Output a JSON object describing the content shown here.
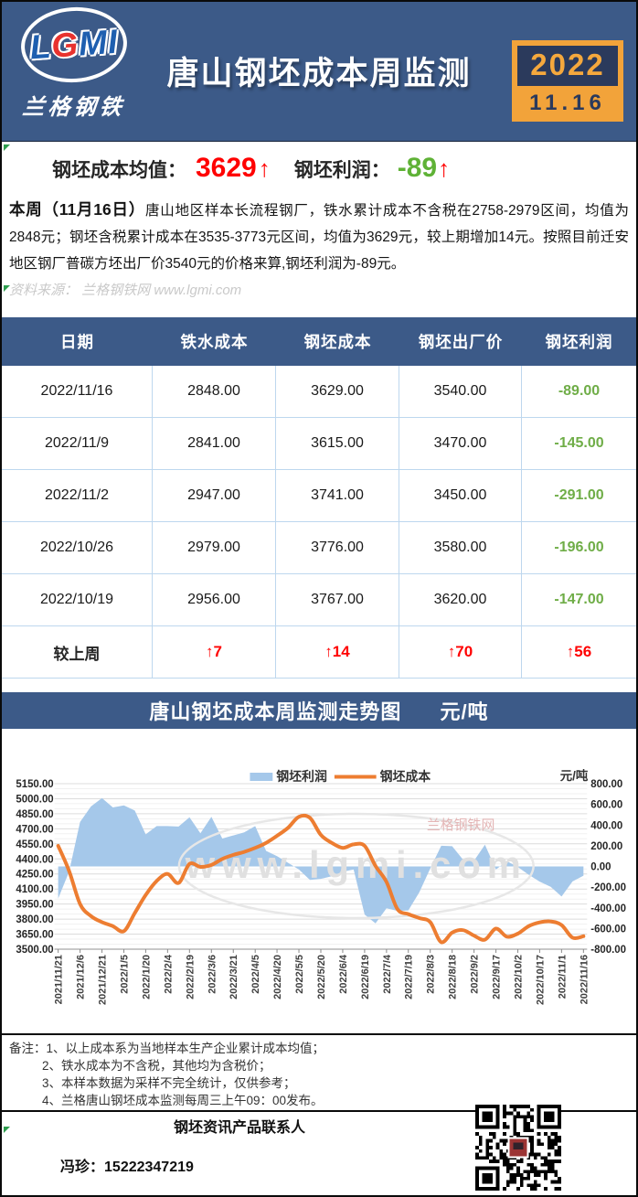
{
  "header": {
    "logo_text": "LGMI",
    "logo_sub": "兰格钢铁",
    "title": "唐山钢坯成本周监测",
    "date_year": "2022",
    "date_md": "11.16"
  },
  "summary": {
    "cost_label": "钢坯成本均值：",
    "cost_value": "3629",
    "cost_arrow": "↑",
    "profit_label": "钢坯利润：",
    "profit_value": "-89",
    "profit_arrow": "↑",
    "paragraph_lead": "本周（11月16日）",
    "paragraph": "唐山地区样本长流程钢厂，铁水累计成本不含税在2758-2979区间，均值为2848元；钢坯含税累计成本在3535-3773元区间，均值为3629元，较上期增加14元。按照目前迁安地区钢厂普碳方坯出厂价3540元的价格来算,钢坯利润为-89元。",
    "source": "资料来源： 兰格钢铁网 www.lgmi.com"
  },
  "table": {
    "headers": [
      "日期",
      "铁水成本",
      "钢坯成本",
      "钢坯出厂价",
      "钢坯利润"
    ],
    "rows": [
      [
        "2022/11/16",
        "2848.00",
        "3629.00",
        "3540.00",
        "-89.00"
      ],
      [
        "2022/11/9",
        "2841.00",
        "3615.00",
        "3470.00",
        "-145.00"
      ],
      [
        "2022/11/2",
        "2947.00",
        "3741.00",
        "3450.00",
        "-291.00"
      ],
      [
        "2022/10/26",
        "2979.00",
        "3776.00",
        "3580.00",
        "-196.00"
      ],
      [
        "2022/10/19",
        "2956.00",
        "3767.00",
        "3620.00",
        "-147.00"
      ]
    ],
    "change_row": [
      "较上周",
      "↑7",
      "↑14",
      "↑70",
      "↑56"
    ]
  },
  "chart_title": {
    "text": "唐山钢坯成本周监测走势图",
    "unit": "元/吨"
  },
  "chart_data": {
    "type": "combo",
    "x_labels": [
      "2021/11/21",
      "2021/12/6",
      "2021/12/21",
      "2022/1/5",
      "2022/1/20",
      "2022/2/4",
      "2022/2/19",
      "2022/3/6",
      "2022/3/21",
      "2022/4/5",
      "2022/4/20",
      "2022/5/5",
      "2022/5/20",
      "2022/6/4",
      "2022/6/19",
      "2022/7/4",
      "2022/7/19",
      "2022/8/3",
      "2022/8/18",
      "2022/9/2",
      "2022/9/17",
      "2022/10/2",
      "2022/10/17",
      "2022/11/1",
      "2022/11/16"
    ],
    "label_every": 2,
    "series": [
      {
        "name": "钢坯利润",
        "type": "area",
        "axis": "right",
        "color": "#A5C8EA",
        "values": [
          -310,
          -50,
          430,
          580,
          660,
          570,
          590,
          540,
          310,
          390,
          390,
          385,
          475,
          320,
          480,
          270,
          300,
          330,
          390,
          150,
          100,
          35,
          -30,
          -130,
          -120,
          -95,
          -50,
          -30,
          -465,
          -550,
          -405,
          -430,
          -425,
          -250,
          -20,
          200,
          195,
          65,
          55,
          210,
          -30,
          50,
          -5,
          -80,
          -147,
          -196,
          -291,
          -145,
          -89
        ]
      },
      {
        "name": "钢坯成本",
        "type": "line",
        "axis": "left",
        "color": "#ED7D31",
        "values": [
          4530,
          4280,
          3950,
          3830,
          3770,
          3730,
          3680,
          3860,
          4040,
          4180,
          4250,
          4160,
          4350,
          4320,
          4340,
          4400,
          4440,
          4470,
          4510,
          4560,
          4630,
          4710,
          4820,
          4810,
          4640,
          4560,
          4510,
          4545,
          4530,
          4330,
          4170,
          3900,
          3850,
          3810,
          3770,
          3570,
          3665,
          3690,
          3635,
          3595,
          3705,
          3625,
          3655,
          3730,
          3767,
          3776,
          3741,
          3615,
          3629
        ]
      }
    ],
    "left_axis": {
      "min": 3500,
      "max": 5150,
      "step": 150,
      "format": "0.00"
    },
    "right_axis": {
      "min": -800,
      "max": 800,
      "step": 200,
      "format": "0.00"
    },
    "unit_label": "元/吨",
    "watermark": "www.lgmi.com",
    "watermark_sub": "兰格钢铁网",
    "legend_position": "top",
    "grid": true
  },
  "notes": {
    "label": "备注：",
    "items": [
      "1、以上成本系为当地样本生产企业累计成本均值；",
      "2、铁水成本为不含税，其他均为含税价；",
      "3、本样本数据为采样不完全统计，仅供参考；",
      "4、兰格唐山钢坯成本监测每周三上午09：00发布。"
    ]
  },
  "footer": {
    "contact_title": "钢坯资讯产品联系人",
    "contact_name": "冯珍：",
    "contact_phone": "15222347219"
  },
  "colors": {
    "header_blue": "#3C5A88",
    "badge_orange": "#F2A33A",
    "badge_navy": "#2B3A5C",
    "up_red": "#FF0000",
    "profit_green": "#6FAD47",
    "line_orange": "#ED7D31",
    "area_blue": "#A5C8EA",
    "table_border": "#BDD7EE"
  }
}
